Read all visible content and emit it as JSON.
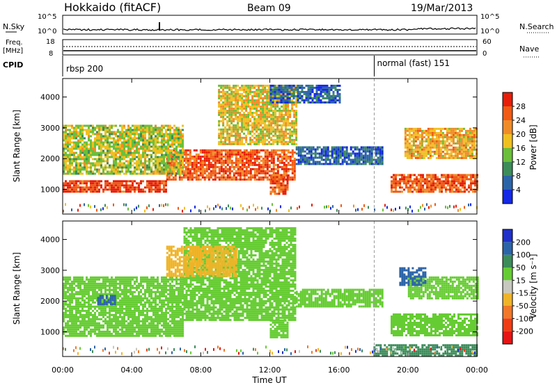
{
  "header": {
    "title": "Hokkaido (fitACF)",
    "beam": "Beam 09",
    "date": "19/Mar/2013"
  },
  "top_panels": {
    "nsky_label": "N.Sky",
    "nsky_ticks": [
      "10^5",
      "10^0"
    ],
    "nsearch_label": "N.Search",
    "nsearch_ticks": [
      "10^5",
      "10^0"
    ],
    "freq_label_line1": "Freq.",
    "freq_label_line2": "[MHz]",
    "freq_ticks": [
      "18",
      "8"
    ],
    "nave_label": "Nave",
    "nave_ticks": [
      "60",
      "0"
    ],
    "cpid_label": "CPID",
    "cpid_segments": [
      {
        "label": "rbsp 200",
        "start_hour": 0,
        "end_hour": 18.05
      },
      {
        "label": "normal (fast) 151",
        "start_hour": 18.05,
        "end_hour": 24
      }
    ]
  },
  "x_axis": {
    "label": "Time UT",
    "ticks": [
      "00:00",
      "04:00",
      "08:00",
      "12:00",
      "16:00",
      "20:00",
      "00:00"
    ]
  },
  "power_colorbar": {
    "label": "Power [dB]",
    "ticks": [
      "4",
      "8",
      "12",
      "16",
      "20",
      "24",
      "28"
    ],
    "colors": [
      "#1428e6",
      "#2c64a8",
      "#3c8c5a",
      "#6bbf3a",
      "#f0c020",
      "#f08c28",
      "#f05a14",
      "#e61e0a"
    ]
  },
  "velocity_colorbar": {
    "label": "Velocity [m s⁻¹]",
    "ticks": [
      "200",
      "100",
      "50",
      "15",
      "-15",
      "-50",
      "-100",
      "-200"
    ],
    "colors": [
      "#2030c8",
      "#2c64a8",
      "#3c8c5a",
      "#66cc33",
      "#c8c8c0",
      "#f0b428",
      "#f07828",
      "#f03c14",
      "#e61414"
    ]
  },
  "chart_data": [
    {
      "type": "heatmap",
      "title": "",
      "xlabel": "Time UT",
      "ylabel": "Slant Range [km]",
      "xlim": [
        0,
        24
      ],
      "ylim": [
        200,
        4600
      ],
      "yticks": [
        1000,
        2000,
        3000,
        4000
      ],
      "colorbar": "Power [dB]",
      "bands": [
        {
          "t0": 0.0,
          "t1": 6.0,
          "r0": 900,
          "r1": 1300,
          "power": 28
        },
        {
          "t0": 6.0,
          "t1": 13.5,
          "r0": 1300,
          "r1": 2300,
          "power": 26
        },
        {
          "t0": 0.0,
          "t1": 7.0,
          "r0": 1500,
          "r1": 3100,
          "power": 16
        },
        {
          "t0": 9.0,
          "t1": 13.5,
          "r0": 2500,
          "r1": 4400,
          "power": 18
        },
        {
          "t0": 12.0,
          "t1": 13.0,
          "r0": 850,
          "r1": 1500,
          "power": 26
        },
        {
          "t0": 13.5,
          "t1": 18.5,
          "r0": 1800,
          "r1": 2400,
          "power": 6
        },
        {
          "t0": 12.0,
          "t1": 16.0,
          "r0": 3800,
          "r1": 4400,
          "power": 6
        },
        {
          "t0": 19.0,
          "t1": 24.0,
          "r0": 900,
          "r1": 1500,
          "power": 26
        },
        {
          "t0": 19.8,
          "t1": 24.0,
          "r0": 2000,
          "r1": 3000,
          "power": 20
        }
      ]
    },
    {
      "type": "heatmap",
      "title": "",
      "xlabel": "Time UT",
      "ylabel": "Slant Range [km]",
      "xlim": [
        0,
        24
      ],
      "ylim": [
        200,
        4600
      ],
      "yticks": [
        1000,
        2000,
        3000,
        4000
      ],
      "colorbar": "Velocity [m s⁻¹]",
      "bands": [
        {
          "t0": 0.0,
          "t1": 7.0,
          "r0": 900,
          "r1": 2800,
          "velocity": 0
        },
        {
          "t0": 7.0,
          "t1": 13.5,
          "r0": 1400,
          "r1": 4400,
          "velocity": 0
        },
        {
          "t0": 12.0,
          "t1": 13.0,
          "r0": 850,
          "r1": 1400,
          "velocity": 0
        },
        {
          "t0": 13.5,
          "t1": 18.5,
          "r0": 1800,
          "r1": 2400,
          "velocity": 0
        },
        {
          "t0": 19.0,
          "t1": 24.0,
          "r0": 900,
          "r1": 1600,
          "velocity": 0
        },
        {
          "t0": 20.0,
          "t1": 24.0,
          "r0": 2100,
          "r1": 2800,
          "velocity": 0
        },
        {
          "t0": 19.5,
          "t1": 21.0,
          "r0": 2500,
          "r1": 3100,
          "velocity": 60
        },
        {
          "t0": 2.0,
          "t1": 3.0,
          "r0": 1900,
          "r1": 2200,
          "velocity": 60
        },
        {
          "t0": 6.0,
          "t1": 10.0,
          "r0": 2800,
          "r1": 3800,
          "velocity": -60
        },
        {
          "t0": 18.0,
          "t1": 24.0,
          "r0": 200,
          "r1": 600,
          "velocity": 40
        }
      ]
    }
  ]
}
